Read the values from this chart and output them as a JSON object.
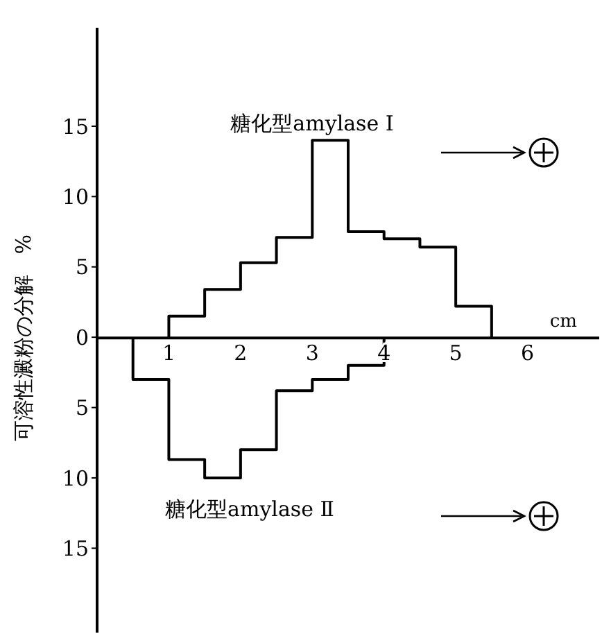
{
  "chart_data": {
    "type": "step",
    "ylabel": "可溶性澱粉の分解　%",
    "xlabel": "cm",
    "marker": "none",
    "xlim": [
      0,
      7
    ],
    "xticks": [
      1,
      2,
      3,
      4,
      5,
      6
    ],
    "ylim": [
      -21,
      22
    ],
    "yticks": [
      15,
      10,
      5,
      0,
      {
        "value": -5,
        "label": "5"
      },
      {
        "value": -10,
        "label": "10"
      },
      {
        "value": -15,
        "label": "15"
      }
    ],
    "series": [
      {
        "name": "糖化型amylase Ⅰ",
        "color": "#000000",
        "x": [
          1,
          1,
          1.5,
          2,
          2.5,
          3,
          3.5,
          4,
          4.5,
          5,
          5.5
        ],
        "values": [
          0,
          1.5,
          3.4,
          5.3,
          7.1,
          14.0,
          7.5,
          7.0,
          6.4,
          2.2,
          0
        ]
      },
      {
        "name": "糖化型amylase Ⅱ",
        "color": "#000000",
        "x": [
          0.5,
          0.5,
          1,
          1.5,
          2,
          2.5,
          3,
          3.5,
          4
        ],
        "values": [
          0,
          -3,
          -8.7,
          -10,
          -8,
          -3.8,
          -3,
          -2,
          0
        ]
      }
    ]
  }
}
